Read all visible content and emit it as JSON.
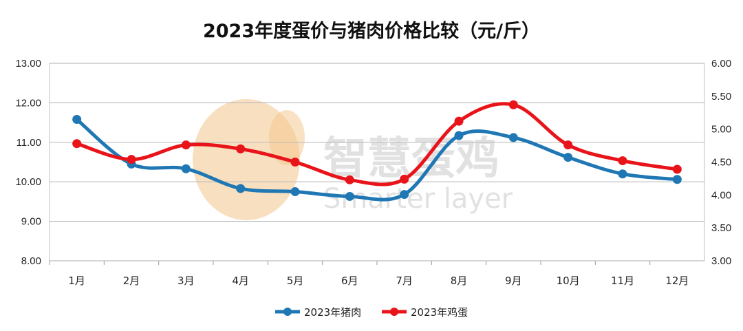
{
  "chart_data": {
    "type": "line",
    "title": "2023年度蛋价与猪肉价格比较（元/斤）",
    "categories": [
      "1月",
      "2月",
      "3月",
      "4月",
      "5月",
      "6月",
      "7月",
      "8月",
      "9月",
      "10月",
      "11月",
      "12月"
    ],
    "left_axis": {
      "ylim": [
        8,
        13
      ],
      "ticks": [
        "8.00",
        "9.00",
        "10.00",
        "11.00",
        "12.00",
        "13.00"
      ]
    },
    "right_axis": {
      "ylim": [
        3,
        6
      ],
      "ticks": [
        "3.00",
        "3.50",
        "4.00",
        "4.50",
        "5.00",
        "5.50",
        "6.00"
      ]
    },
    "series": [
      {
        "name": "2023年猪肉",
        "axis": "left",
        "color": "#1f77b4",
        "values": [
          11.58,
          10.45,
          10.33,
          9.83,
          9.75,
          9.63,
          9.68,
          11.17,
          11.12,
          10.62,
          10.2,
          10.06
        ]
      },
      {
        "name": "2023年鸡蛋",
        "axis": "right",
        "color": "#e8141a",
        "values": [
          4.78,
          4.54,
          4.76,
          4.7,
          4.5,
          4.23,
          4.24,
          5.12,
          5.37,
          4.76,
          4.52,
          4.39
        ]
      }
    ],
    "grid": true,
    "legend_position": "bottom"
  },
  "watermark": {
    "chinese": "智慧蛋鸡",
    "english": "Smarter layer"
  }
}
